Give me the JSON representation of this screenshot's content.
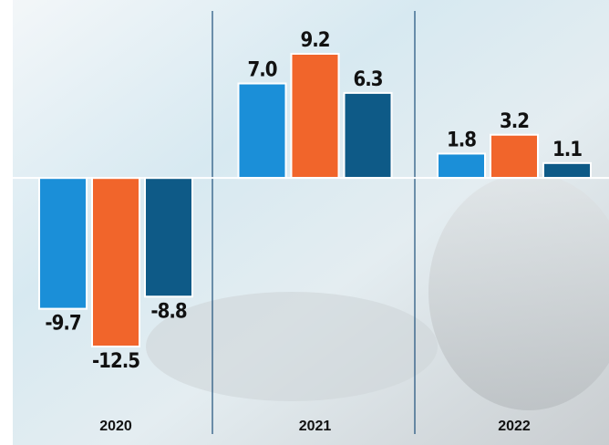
{
  "chart_data": {
    "type": "bar",
    "categories": [
      "2020",
      "2021",
      "2022"
    ],
    "series": [
      {
        "color": "#1b8fd8",
        "values": [
          -9.7,
          7.0,
          1.8
        ],
        "value_labels": [
          "-9.7",
          "7.0",
          "1.8"
        ]
      },
      {
        "color": "#f1652b",
        "values": [
          -12.5,
          9.2,
          3.2
        ],
        "value_labels": [
          "-12.5",
          "9.2",
          "3.2"
        ]
      },
      {
        "color": "#0e5a87",
        "values": [
          -8.8,
          6.3,
          1.1
        ],
        "value_labels": [
          "-8.8",
          "6.3",
          "1.1"
        ]
      }
    ]
  }
}
